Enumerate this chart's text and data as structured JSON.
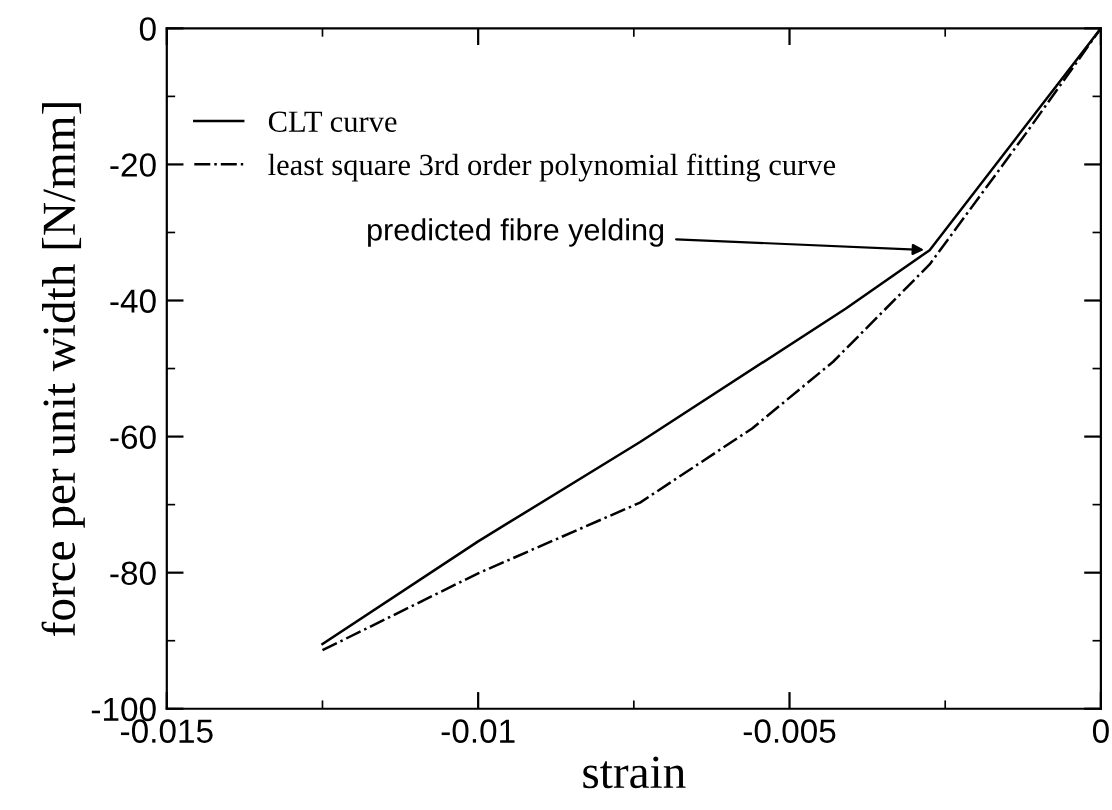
{
  "chart_data": {
    "type": "line",
    "xlabel": "strain",
    "ylabel": "force per unit width [N/mm]",
    "xlim": [
      -0.015,
      0
    ],
    "ylim": [
      -100,
      0
    ],
    "xticks": [
      -0.015,
      -0.01,
      -0.005,
      0
    ],
    "yticks": [
      -100,
      -80,
      -60,
      -40,
      -20,
      0
    ],
    "grid": false,
    "legend": "top left",
    "marker": "none",
    "annotations": [
      {
        "text": "predicted fibre yelding",
        "x": -0.00275,
        "y": -32.6
      }
    ],
    "series": [
      {
        "name": "CLT curve",
        "color": "#000000",
        "line_style": "solid",
        "x": [
          -0.0125,
          -0.01,
          -0.0074,
          -0.0041,
          -0.00275,
          0
        ],
        "values": [
          -90.5,
          -75.4,
          -60.8,
          -41.2,
          -32.6,
          0
        ]
      },
      {
        "name": "least square 3rd order polynomial fitting curve",
        "color": "#000000",
        "line_style": "dashdot",
        "x": [
          -0.0125,
          -0.01,
          -0.0074,
          -0.0056,
          -0.0043,
          -0.00275,
          -0.0012,
          0
        ],
        "values": [
          -91.4,
          -80.1,
          -69.7,
          -58.8,
          -49,
          -34.7,
          -15.4,
          0
        ]
      }
    ]
  }
}
